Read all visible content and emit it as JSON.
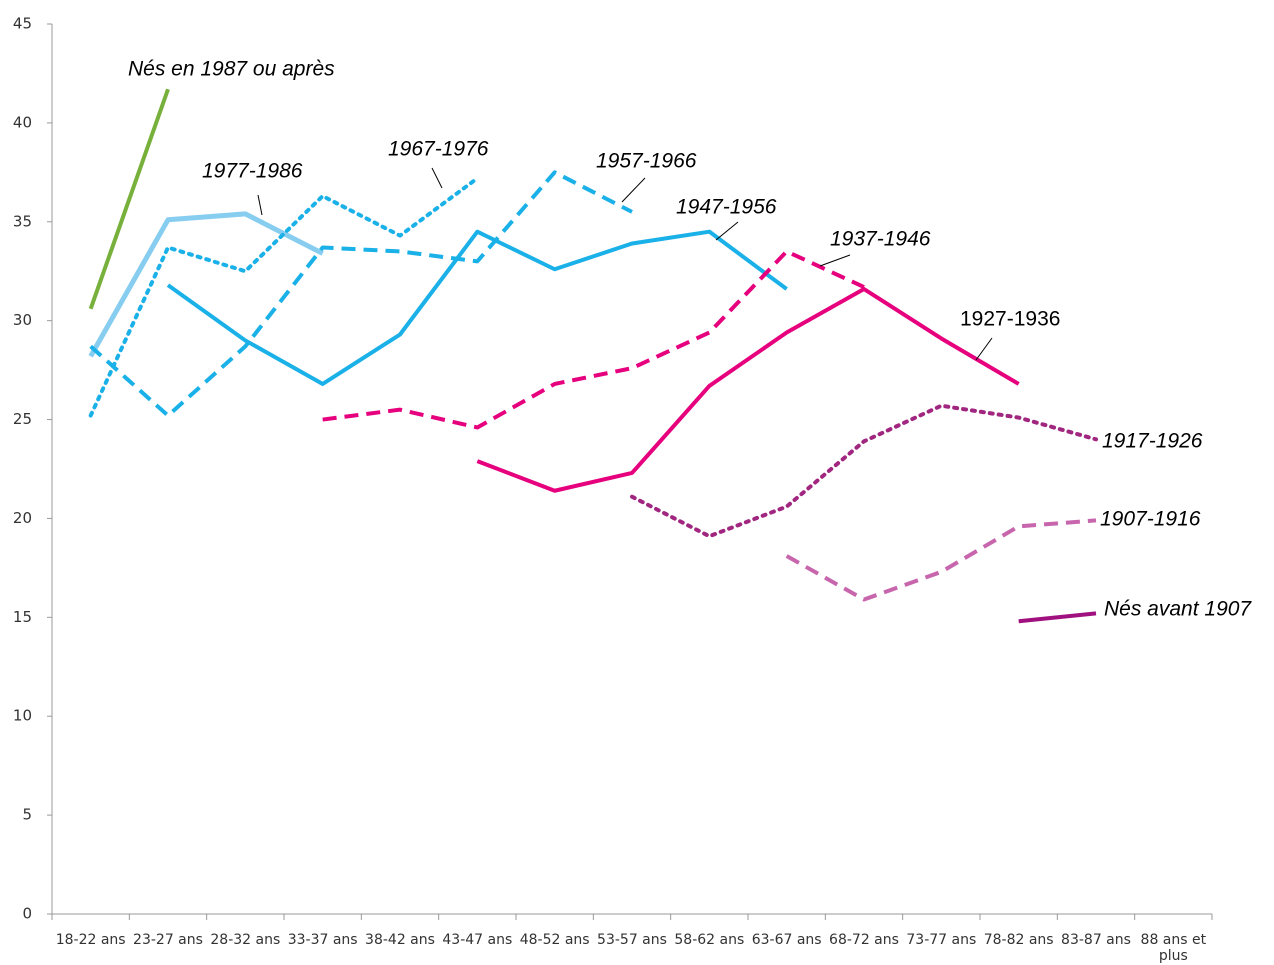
{
  "chart_data": {
    "type": "line",
    "categories": [
      "18-22 ans",
      "23-27 ans",
      "28-32 ans",
      "33-37 ans",
      "38-42 ans",
      "43-47 ans",
      "48-52 ans",
      "53-57 ans",
      "58-62 ans",
      "63-67 ans",
      "68-72 ans",
      "73-77 ans",
      "78-82 ans",
      "83-87 ans",
      "88 ans et plus"
    ],
    "ylim": [
      0,
      45
    ],
    "yticks": [
      0,
      5,
      10,
      15,
      20,
      25,
      30,
      35,
      40,
      45
    ],
    "grid": false,
    "series": [
      {
        "name": "Nés en 1987 ou après",
        "color": "#77b03a",
        "style": "solid",
        "values": [
          30.6,
          41.7,
          null,
          null,
          null,
          null,
          null,
          null,
          null,
          null,
          null,
          null,
          null,
          null,
          null
        ]
      },
      {
        "name": "1977-1986",
        "color": "#86cdf0",
        "style": "solid",
        "values": [
          28.2,
          35.1,
          35.4,
          33.4,
          null,
          null,
          null,
          null,
          null,
          null,
          null,
          null,
          null,
          null,
          null
        ]
      },
      {
        "name": "1967-1976",
        "color": "#1ab0e8",
        "style": "dotted",
        "values": [
          25.2,
          33.7,
          32.5,
          36.3,
          34.3,
          37.2,
          null,
          null,
          null,
          null,
          null,
          null,
          null,
          null,
          null
        ]
      },
      {
        "name": "1957-1966",
        "color": "#1ab0e8",
        "style": "dashed",
        "values": [
          28.7,
          25.2,
          28.7,
          33.7,
          33.5,
          33.0,
          37.5,
          35.5,
          null,
          null,
          null,
          null,
          null,
          null,
          null
        ]
      },
      {
        "name": "1947-1956",
        "color": "#1ab0e8",
        "style": "solid",
        "values": [
          null,
          31.8,
          29.0,
          26.8,
          29.3,
          34.5,
          32.6,
          33.9,
          34.5,
          31.6,
          null,
          null,
          null,
          null,
          null
        ]
      },
      {
        "name": "1937-1946",
        "color": "#e6007e",
        "style": "dashed",
        "values": [
          null,
          null,
          null,
          25.0,
          25.5,
          24.6,
          26.8,
          27.6,
          29.4,
          33.5,
          31.7,
          null,
          null,
          null,
          null
        ]
      },
      {
        "name": "1927-1936",
        "color": "#e6007e",
        "style": "solid",
        "values": [
          null,
          null,
          null,
          null,
          null,
          22.9,
          21.4,
          22.3,
          26.7,
          29.4,
          31.6,
          29.1,
          26.8,
          null,
          null
        ]
      },
      {
        "name": "1917-1926",
        "color": "#a0267f",
        "style": "dotted",
        "values": [
          null,
          null,
          null,
          null,
          null,
          null,
          null,
          21.1,
          19.1,
          20.6,
          23.9,
          25.7,
          25.1,
          24.0,
          null
        ]
      },
      {
        "name": "1907-1916",
        "color": "#c766ad",
        "style": "dashed",
        "values": [
          null,
          null,
          null,
          null,
          null,
          null,
          null,
          null,
          null,
          18.1,
          15.9,
          17.3,
          19.6,
          19.9,
          null
        ]
      },
      {
        "name": "Nés avant 1907",
        "color": "#a0117f",
        "style": "solid",
        "values": [
          null,
          null,
          null,
          null,
          null,
          null,
          null,
          null,
          null,
          null,
          null,
          null,
          14.8,
          15.2,
          null
        ]
      }
    ]
  }
}
